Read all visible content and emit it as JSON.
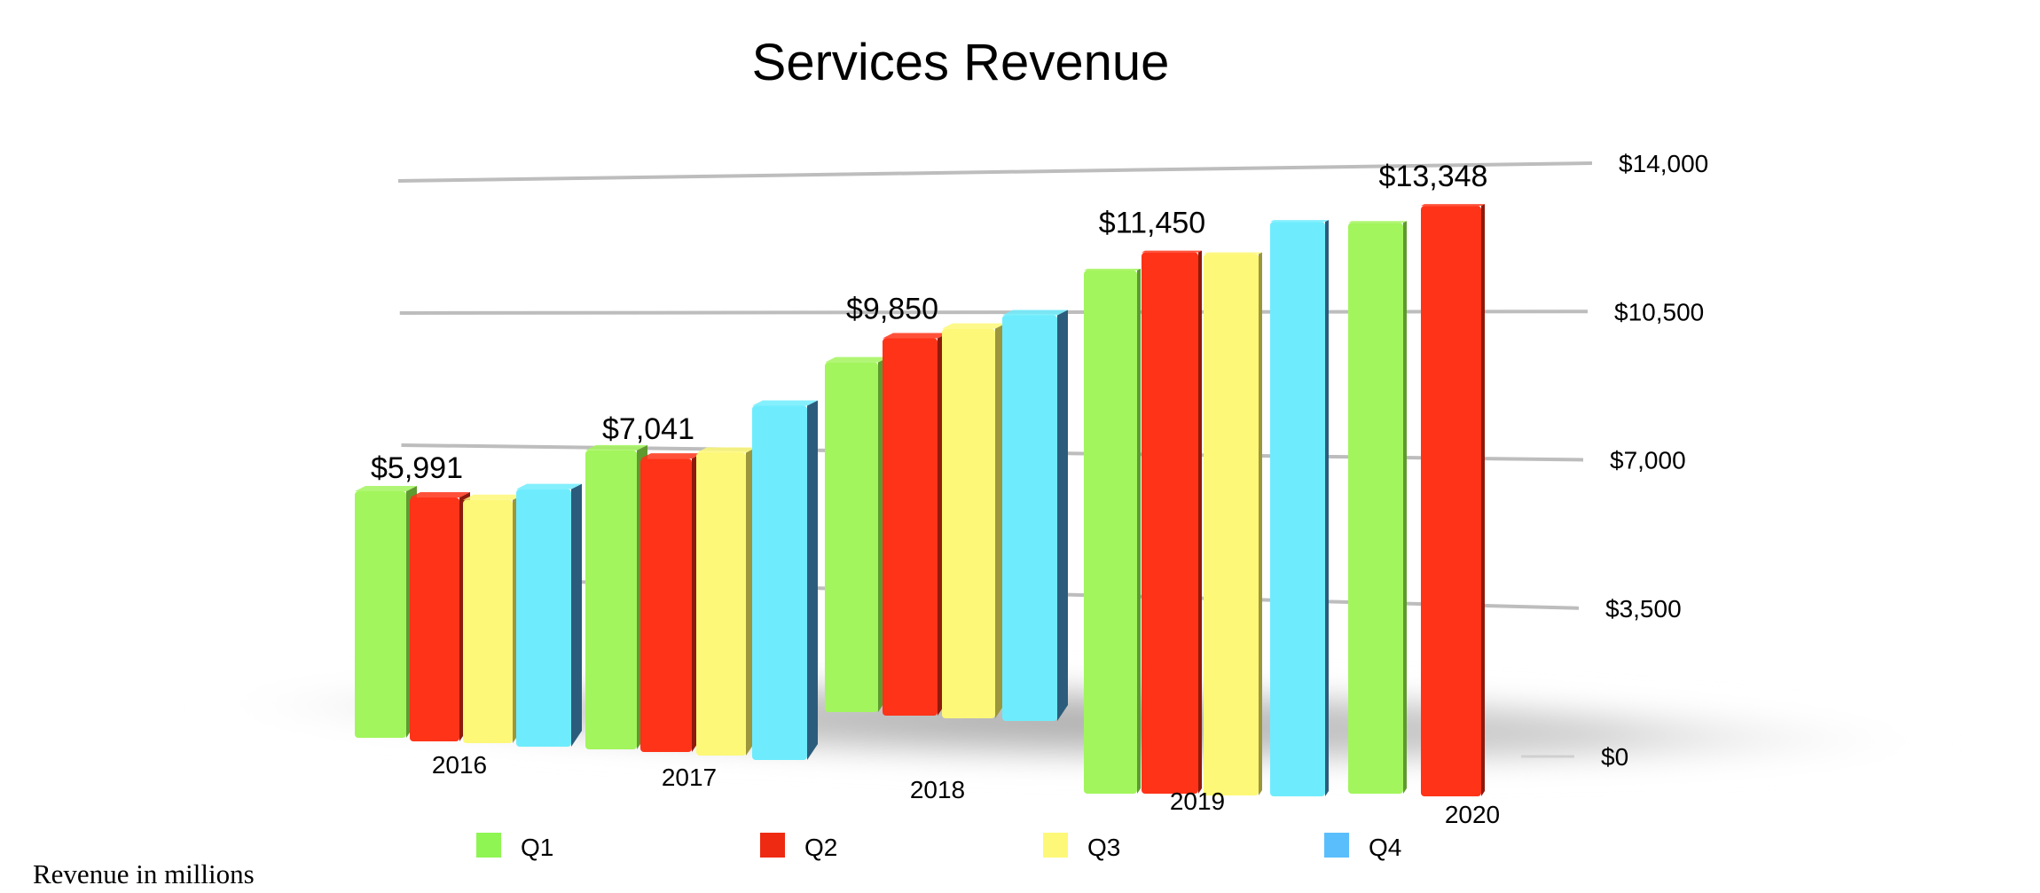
{
  "chart_data": {
    "type": "bar",
    "style": "3d-clustered-column",
    "title": "Services Revenue",
    "xlabel": "",
    "ylabel": "",
    "footnote": "Revenue in millions",
    "categories": [
      "2016",
      "2017",
      "2018",
      "2019",
      "2020"
    ],
    "series": [
      {
        "name": "Q1",
        "color": "#a2f55c",
        "side_color": "#5e9a30",
        "values": [
          6056,
          7172,
          9129,
          10875,
          12715
        ]
      },
      {
        "name": "Q2",
        "color": "#ff3318",
        "side_color": "#8e1a0c",
        "values": [
          5991,
          7041,
          9850,
          11450,
          13348
        ]
      },
      {
        "name": "Q3",
        "color": "#fdf877",
        "side_color": "#9c963c",
        "values": [
          5976,
          7266,
          10170,
          11455,
          null
        ]
      },
      {
        "name": "Q4",
        "color": "#6eecfd",
        "side_color": "#2c5c7c",
        "values": [
          6325,
          8501,
          10591,
          12511,
          null
        ]
      }
    ],
    "data_labels": [
      {
        "category": "2016",
        "series": "Q2",
        "text": "$5,991"
      },
      {
        "category": "2017",
        "series": "Q2",
        "text": "$7,041"
      },
      {
        "category": "2018",
        "series": "Q2",
        "text": "$9,850"
      },
      {
        "category": "2019",
        "series": "Q2",
        "text": "$11,450"
      },
      {
        "category": "2020",
        "series": "Q2",
        "text": "$13,348"
      }
    ],
    "y_ticks": [
      0,
      3500,
      7000,
      10500,
      14000
    ],
    "y_tick_labels": [
      "$0",
      "$3,500",
      "$7,000",
      "$10,500",
      "$14,000"
    ],
    "ylim": [
      0,
      14000
    ],
    "y_axis_side": "right",
    "grid": true,
    "legend": {
      "placement": "bottom",
      "entries": [
        "Q1",
        "Q2",
        "Q3",
        "Q4"
      ],
      "colors": [
        "#8ef553",
        "#ee2a12",
        "#fdf877",
        "#5bbefc"
      ]
    }
  }
}
